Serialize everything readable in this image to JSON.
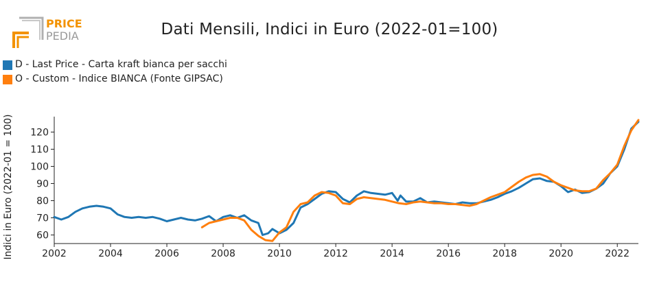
{
  "logo": {
    "line1": "PRICE",
    "line2": "PEDIA",
    "color_primary": "#f39200",
    "color_secondary": "#9a9a9a"
  },
  "chart_data": {
    "type": "line",
    "title": "Dati Mensili, Indici in Euro (2022-01=100)",
    "xlabel": "",
    "ylabel": "Indici in Euro (2022-01 = 100)",
    "xlim": [
      2002.0,
      2022.75
    ],
    "ylim": [
      55,
      129
    ],
    "x_ticks": [
      2002,
      2004,
      2006,
      2008,
      2010,
      2012,
      2014,
      2016,
      2018,
      2020,
      2022
    ],
    "y_ticks": [
      60,
      70,
      80,
      90,
      100,
      110,
      120
    ],
    "grid": false,
    "legend_position": "top-left",
    "series": [
      {
        "name": "D - Last Price - Carta kraft bianca per sacchi",
        "color": "#1f77b4",
        "points": [
          [
            2002.0,
            70.5
          ],
          [
            2002.25,
            69.0
          ],
          [
            2002.5,
            70.5
          ],
          [
            2002.75,
            73.5
          ],
          [
            2003.0,
            75.5
          ],
          [
            2003.25,
            76.5
          ],
          [
            2003.5,
            77.0
          ],
          [
            2003.75,
            76.5
          ],
          [
            2004.0,
            75.5
          ],
          [
            2004.25,
            72.0
          ],
          [
            2004.5,
            70.5
          ],
          [
            2004.75,
            70.0
          ],
          [
            2005.0,
            70.5
          ],
          [
            2005.25,
            70.0
          ],
          [
            2005.5,
            70.5
          ],
          [
            2005.75,
            69.5
          ],
          [
            2006.0,
            68.0
          ],
          [
            2006.25,
            69.0
          ],
          [
            2006.5,
            70.0
          ],
          [
            2006.75,
            69.0
          ],
          [
            2007.0,
            68.5
          ],
          [
            2007.25,
            69.5
          ],
          [
            2007.5,
            71.0
          ],
          [
            2007.75,
            68.0
          ],
          [
            2008.0,
            70.5
          ],
          [
            2008.25,
            71.5
          ],
          [
            2008.5,
            70.0
          ],
          [
            2008.75,
            71.5
          ],
          [
            2009.0,
            68.5
          ],
          [
            2009.25,
            67.0
          ],
          [
            2009.4,
            60.0
          ],
          [
            2009.6,
            61.0
          ],
          [
            2009.75,
            63.5
          ],
          [
            2010.0,
            61.0
          ],
          [
            2010.25,
            63.0
          ],
          [
            2010.5,
            67.0
          ],
          [
            2010.75,
            76.0
          ],
          [
            2011.0,
            78.0
          ],
          [
            2011.25,
            81.0
          ],
          [
            2011.5,
            84.0
          ],
          [
            2011.75,
            85.5
          ],
          [
            2012.0,
            85.0
          ],
          [
            2012.25,
            81.0
          ],
          [
            2012.5,
            79.0
          ],
          [
            2012.75,
            83.0
          ],
          [
            2013.0,
            85.5
          ],
          [
            2013.25,
            84.5
          ],
          [
            2013.5,
            84.0
          ],
          [
            2013.75,
            83.5
          ],
          [
            2014.0,
            84.5
          ],
          [
            2014.2,
            80.0
          ],
          [
            2014.3,
            83.0
          ],
          [
            2014.5,
            79.5
          ],
          [
            2014.75,
            79.5
          ],
          [
            2015.0,
            81.5
          ],
          [
            2015.25,
            79.0
          ],
          [
            2015.5,
            79.5
          ],
          [
            2015.75,
            79.0
          ],
          [
            2016.0,
            78.5
          ],
          [
            2016.25,
            78.0
          ],
          [
            2016.5,
            79.0
          ],
          [
            2016.75,
            78.5
          ],
          [
            2017.0,
            78.5
          ],
          [
            2017.25,
            79.5
          ],
          [
            2017.5,
            80.5
          ],
          [
            2017.75,
            82.0
          ],
          [
            2018.0,
            84.0
          ],
          [
            2018.25,
            85.5
          ],
          [
            2018.5,
            87.5
          ],
          [
            2018.75,
            90.0
          ],
          [
            2019.0,
            92.5
          ],
          [
            2019.25,
            93.0
          ],
          [
            2019.5,
            91.5
          ],
          [
            2019.75,
            91.0
          ],
          [
            2020.0,
            88.5
          ],
          [
            2020.25,
            85.0
          ],
          [
            2020.5,
            86.5
          ],
          [
            2020.75,
            84.5
          ],
          [
            2021.0,
            85.0
          ],
          [
            2021.25,
            87.0
          ],
          [
            2021.5,
            90.0
          ],
          [
            2021.75,
            96.0
          ],
          [
            2022.0,
            100.0
          ],
          [
            2022.25,
            110.0
          ],
          [
            2022.5,
            122.0
          ],
          [
            2022.75,
            126.0
          ]
        ]
      },
      {
        "name": "O - Custom - Indice BIANCA (Fonte GIPSAC)",
        "color": "#ff7f0e",
        "points": [
          [
            2007.25,
            64.5
          ],
          [
            2007.5,
            67.0
          ],
          [
            2007.75,
            68.0
          ],
          [
            2008.0,
            69.0
          ],
          [
            2008.25,
            70.0
          ],
          [
            2008.5,
            70.0
          ],
          [
            2008.75,
            68.5
          ],
          [
            2009.0,
            63.0
          ],
          [
            2009.25,
            59.5
          ],
          [
            2009.5,
            57.0
          ],
          [
            2009.75,
            56.5
          ],
          [
            2010.0,
            61.5
          ],
          [
            2010.25,
            64.5
          ],
          [
            2010.5,
            73.5
          ],
          [
            2010.75,
            78.0
          ],
          [
            2011.0,
            79.0
          ],
          [
            2011.25,
            83.0
          ],
          [
            2011.5,
            85.0
          ],
          [
            2011.75,
            84.5
          ],
          [
            2012.0,
            83.0
          ],
          [
            2012.25,
            78.5
          ],
          [
            2012.5,
            78.0
          ],
          [
            2012.75,
            81.0
          ],
          [
            2013.0,
            82.0
          ],
          [
            2013.25,
            81.5
          ],
          [
            2013.5,
            81.0
          ],
          [
            2013.75,
            80.5
          ],
          [
            2014.0,
            79.5
          ],
          [
            2014.25,
            78.5
          ],
          [
            2014.5,
            78.0
          ],
          [
            2014.75,
            79.0
          ],
          [
            2015.0,
            79.5
          ],
          [
            2015.25,
            79.0
          ],
          [
            2015.5,
            78.5
          ],
          [
            2015.75,
            78.5
          ],
          [
            2016.0,
            78.0
          ],
          [
            2016.25,
            78.0
          ],
          [
            2016.5,
            77.5
          ],
          [
            2016.75,
            77.0
          ],
          [
            2017.0,
            78.0
          ],
          [
            2017.25,
            80.0
          ],
          [
            2017.5,
            82.0
          ],
          [
            2017.75,
            83.5
          ],
          [
            2018.0,
            85.0
          ],
          [
            2018.25,
            88.0
          ],
          [
            2018.5,
            91.0
          ],
          [
            2018.75,
            93.5
          ],
          [
            2019.0,
            95.0
          ],
          [
            2019.25,
            95.5
          ],
          [
            2019.5,
            94.0
          ],
          [
            2019.75,
            91.0
          ],
          [
            2020.0,
            89.0
          ],
          [
            2020.25,
            87.5
          ],
          [
            2020.5,
            86.0
          ],
          [
            2020.75,
            85.5
          ],
          [
            2021.0,
            85.5
          ],
          [
            2021.25,
            87.0
          ],
          [
            2021.5,
            92.0
          ],
          [
            2021.75,
            96.0
          ],
          [
            2022.0,
            101.0
          ],
          [
            2022.25,
            112.0
          ],
          [
            2022.5,
            121.0
          ],
          [
            2022.75,
            127.0
          ]
        ]
      }
    ]
  }
}
